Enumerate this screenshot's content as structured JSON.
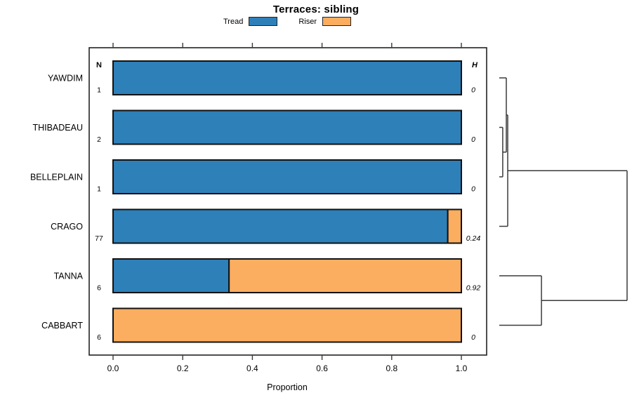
{
  "title": "Terraces: sibling",
  "legend": {
    "items": [
      {
        "label": "Tread",
        "color": "#2E80B9"
      },
      {
        "label": "Riser",
        "color": "#FBAD60"
      }
    ]
  },
  "columns": {
    "n_header": "N",
    "h_header": "H"
  },
  "axis": {
    "xlabel": "Proportion",
    "tick_labels": [
      "0.0",
      "0.2",
      "0.4",
      "0.6",
      "0.8",
      "1.0"
    ],
    "tick_values": [
      0,
      0.2,
      0.4,
      0.6,
      0.8,
      1.0
    ]
  },
  "colors": {
    "tread": "#2E80B9",
    "riser": "#FBAD60",
    "bar_border": "#111111",
    "box_border": "#222222",
    "line": "#3a3a3a"
  },
  "chart_data": {
    "type": "bar",
    "orientation": "horizontal",
    "stacked": true,
    "title": "Terraces: sibling",
    "xlabel": "Proportion",
    "xlim": [
      0,
      1
    ],
    "grid": false,
    "legend_position": "top",
    "categories": [
      "YAWDIM",
      "THIBADEAU",
      "BELLEPLAIN",
      "CRAGO",
      "TANNA",
      "CABBART"
    ],
    "n_values": [
      "1",
      "2",
      "1",
      "77",
      "6",
      "6"
    ],
    "h_values": [
      "0",
      "0",
      "0",
      "0.24",
      "0.92",
      "0"
    ],
    "series": [
      {
        "name": "Tread",
        "color": "#2E80B9",
        "values": [
          1,
          1,
          1,
          0.961,
          0.333,
          0
        ]
      },
      {
        "name": "Riser",
        "color": "#FBAD60",
        "values": [
          0,
          0,
          0,
          0.039,
          0.667,
          1
        ]
      }
    ],
    "dendrogram": {
      "description": "right-side cluster dendrogram, heights normalized 0-1",
      "merges": [
        {
          "clusters": [
            "THIBADEAU",
            "BELLEPLAIN"
          ],
          "height": 0.027
        },
        {
          "clusters": [
            "YAWDIM",
            "THIBADEAU+BELLEPLAIN"
          ],
          "height": 0.055
        },
        {
          "clusters": [
            "YAWDIM+THIBADEAU+BELLEPLAIN",
            "CRAGO"
          ],
          "height": 0.066
        },
        {
          "clusters": [
            "TANNA",
            "CABBART"
          ],
          "height": 0.33
        },
        {
          "clusters": [
            "upper-cluster",
            "lower-cluster"
          ],
          "height": 1.0
        }
      ],
      "segments": [
        [
          0,
          0,
          0.055,
          0
        ],
        [
          0,
          1,
          0.027,
          1
        ],
        [
          0,
          2,
          0.027,
          2
        ],
        [
          0.027,
          1,
          0.027,
          2
        ],
        [
          0.027,
          1.5,
          0.055,
          1.5
        ],
        [
          0.055,
          0,
          0.055,
          1.5
        ],
        [
          0.055,
          0.75,
          0.066,
          0.75
        ],
        [
          0,
          3,
          0.066,
          3
        ],
        [
          0.066,
          0.75,
          0.066,
          3
        ],
        [
          0.066,
          1.875,
          1,
          1.875
        ],
        [
          0,
          4,
          0.33,
          4
        ],
        [
          0,
          5,
          0.33,
          5
        ],
        [
          0.33,
          4,
          0.33,
          5
        ],
        [
          0.33,
          4.5,
          1,
          4.5
        ],
        [
          1,
          1.875,
          1,
          4.5
        ]
      ]
    }
  }
}
